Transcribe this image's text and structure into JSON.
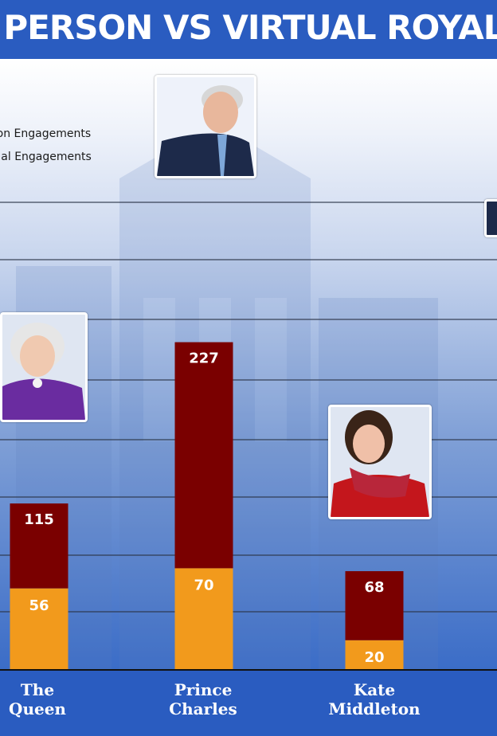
{
  "title": "IN PERSON VS VIRTUAL ROYAL ENGAGEMENTS",
  "legend": [
    {
      "label": "In-Person Engagements",
      "color": "#7a0000"
    },
    {
      "label": "Virtual Engagements",
      "color": "#f29a1c"
    }
  ],
  "colors": {
    "in_person": "#7a0000",
    "virtual": "#f29a1c",
    "banner": "#2a5cc0"
  },
  "chart_data": {
    "type": "bar",
    "stacked": true,
    "title": "IN PERSON VS VIRTUAL ROYAL ENGAGEMENTS",
    "categories": [
      "The Queen",
      "Prince Charles",
      "Kate Middleton"
    ],
    "series": [
      {
        "name": "Virtual Engagements",
        "values": [
          56,
          70,
          20
        ]
      },
      {
        "name": "In-Person Engagements",
        "values": [
          115,
          227,
          68
        ]
      }
    ],
    "ylim": [
      0,
      330
    ],
    "grid": true,
    "legend_position": "top-left"
  },
  "people": [
    {
      "name_line1": "The",
      "name_line2": "Queen",
      "total": 115,
      "virtual": 56,
      "icon": "queen-portrait-icon"
    },
    {
      "name_line1": "Prince",
      "name_line2": "Charles",
      "total": 227,
      "virtual": 70,
      "icon": "prince-charles-portrait-icon"
    },
    {
      "name_line1": "Kate",
      "name_line2": "Middleton",
      "total": 68,
      "virtual": 20,
      "icon": "kate-middleton-portrait-icon"
    }
  ]
}
